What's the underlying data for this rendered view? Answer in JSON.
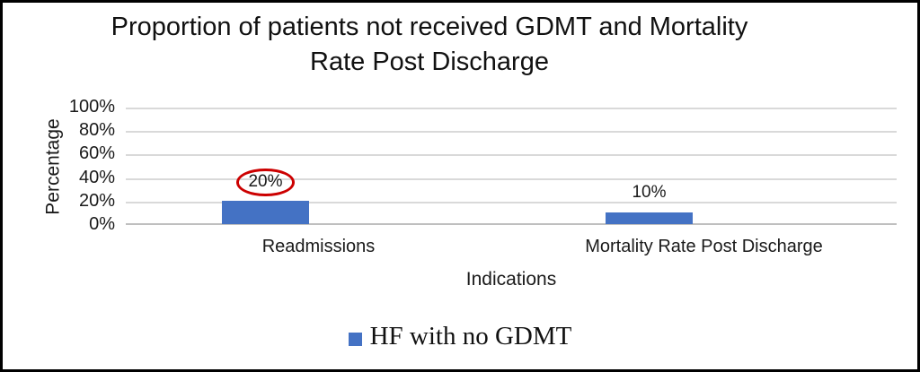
{
  "frame": {
    "border_color": "#000000",
    "background_color": "#FFFFFF"
  },
  "title": {
    "line1": "Proportion of patients not received GDMT and Mortality",
    "line2": "Rate Post Discharge"
  },
  "chart_data": {
    "type": "bar",
    "title": "Proportion of patients not received GDMT and Mortality Rate Post Discharge",
    "categories": [
      "Readmissions",
      "Mortality Rate Post Discharge"
    ],
    "series": [
      {
        "name": "HF with no GDMT",
        "values": [
          20,
          10
        ],
        "color": "#4472C4"
      }
    ],
    "data_labels": [
      "20%",
      "10%"
    ],
    "xlabel": "Indications",
    "ylabel": "Percentage",
    "ylim": [
      0,
      100
    ],
    "ytick_labels": [
      "100%",
      "80%",
      "60%",
      "40%",
      "20%",
      "0%"
    ],
    "grid": true,
    "gridline_color": "#D9D9D9",
    "axis_line_color": "#BFBFBF",
    "legend_position": "bottom",
    "annotation": {
      "shape": "ellipse",
      "around_label": "20%",
      "stroke_color": "#CC0000"
    }
  },
  "legend": {
    "label": "HF with no GDMT",
    "swatch_color": "#4472C4"
  }
}
